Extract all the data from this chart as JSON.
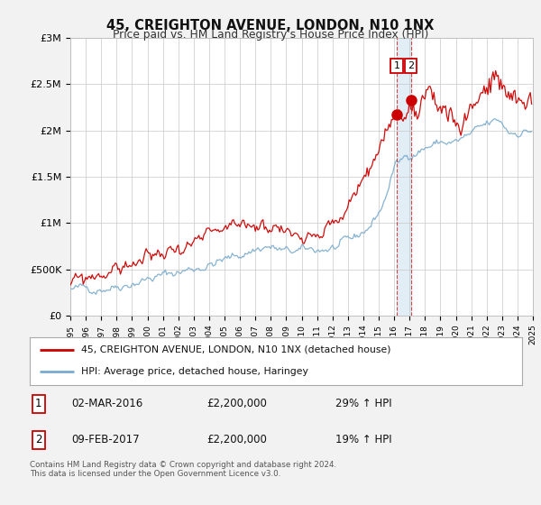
{
  "title": "45, CREIGHTON AVENUE, LONDON, N10 1NX",
  "subtitle": "Price paid vs. HM Land Registry's House Price Index (HPI)",
  "legend_line1": "45, CREIGHTON AVENUE, LONDON, N10 1NX (detached house)",
  "legend_line2": "HPI: Average price, detached house, Haringey",
  "transaction1_date": "02-MAR-2016",
  "transaction1_price": "£2,200,000",
  "transaction1_hpi": "29% ↑ HPI",
  "transaction2_date": "09-FEB-2017",
  "transaction2_price": "£2,200,000",
  "transaction2_hpi": "19% ↑ HPI",
  "footer": "Contains HM Land Registry data © Crown copyright and database right 2024.\nThis data is licensed under the Open Government Licence v3.0.",
  "red_color": "#cc0000",
  "blue_color": "#7aabcf",
  "vline_color": "#cc0000",
  "background_color": "#f2f2f2",
  "plot_bg_color": "#ffffff",
  "ylim": [
    0,
    3000000
  ],
  "yticks": [
    0,
    500000,
    1000000,
    1500000,
    2000000,
    2500000,
    3000000
  ],
  "ytick_labels": [
    "£0",
    "£500K",
    "£1M",
    "£1.5M",
    "£2M",
    "£2.5M",
    "£3M"
  ],
  "t1_year": 2016.17,
  "t2_year": 2017.08,
  "t1_price": 2200000,
  "t2_price": 2200000
}
